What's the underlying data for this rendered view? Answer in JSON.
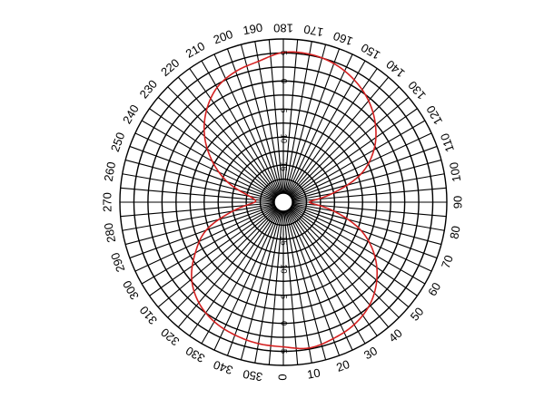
{
  "chart_data": {
    "type": "polar",
    "title": "",
    "angle_unit": "deg",
    "angle_ticks": [
      0,
      10,
      20,
      30,
      40,
      50,
      60,
      70,
      80,
      90,
      100,
      110,
      120,
      130,
      140,
      150,
      160,
      170,
      180,
      190,
      200,
      210,
      220,
      230,
      240,
      250,
      260,
      270,
      280,
      290,
      300,
      310,
      320,
      330,
      340,
      350
    ],
    "radial_ticks": [
      -15,
      -10,
      -5,
      0,
      5
    ],
    "radial_range": [
      -20,
      7.5
    ],
    "grid": true,
    "series": [
      {
        "color": "#d42020",
        "angles": [
          0,
          10,
          20,
          30,
          40,
          50,
          60,
          70,
          80,
          90,
          100,
          110,
          120,
          130,
          140,
          150,
          160,
          170,
          180,
          190,
          200,
          210,
          220,
          230,
          240,
          250,
          260,
          270,
          280,
          290,
          300,
          310,
          320,
          330,
          340,
          350
        ],
        "values": [
          4.2,
          4.8,
          4.3,
          3.6,
          2.3,
          0.1,
          -2.9,
          -6.9,
          -12.5,
          -17.0,
          -12.8,
          -6.9,
          -3.0,
          -0.2,
          2.0,
          3.6,
          4.7,
          5.2,
          5.1,
          3.9,
          3.2,
          2.0,
          -0.3,
          -3.3,
          -7.0,
          -11.0,
          -15.5,
          -16.5,
          -12.5,
          -7.0,
          -3.5,
          -0.3,
          1.8,
          3.0,
          3.6,
          4.0
        ]
      }
    ]
  }
}
